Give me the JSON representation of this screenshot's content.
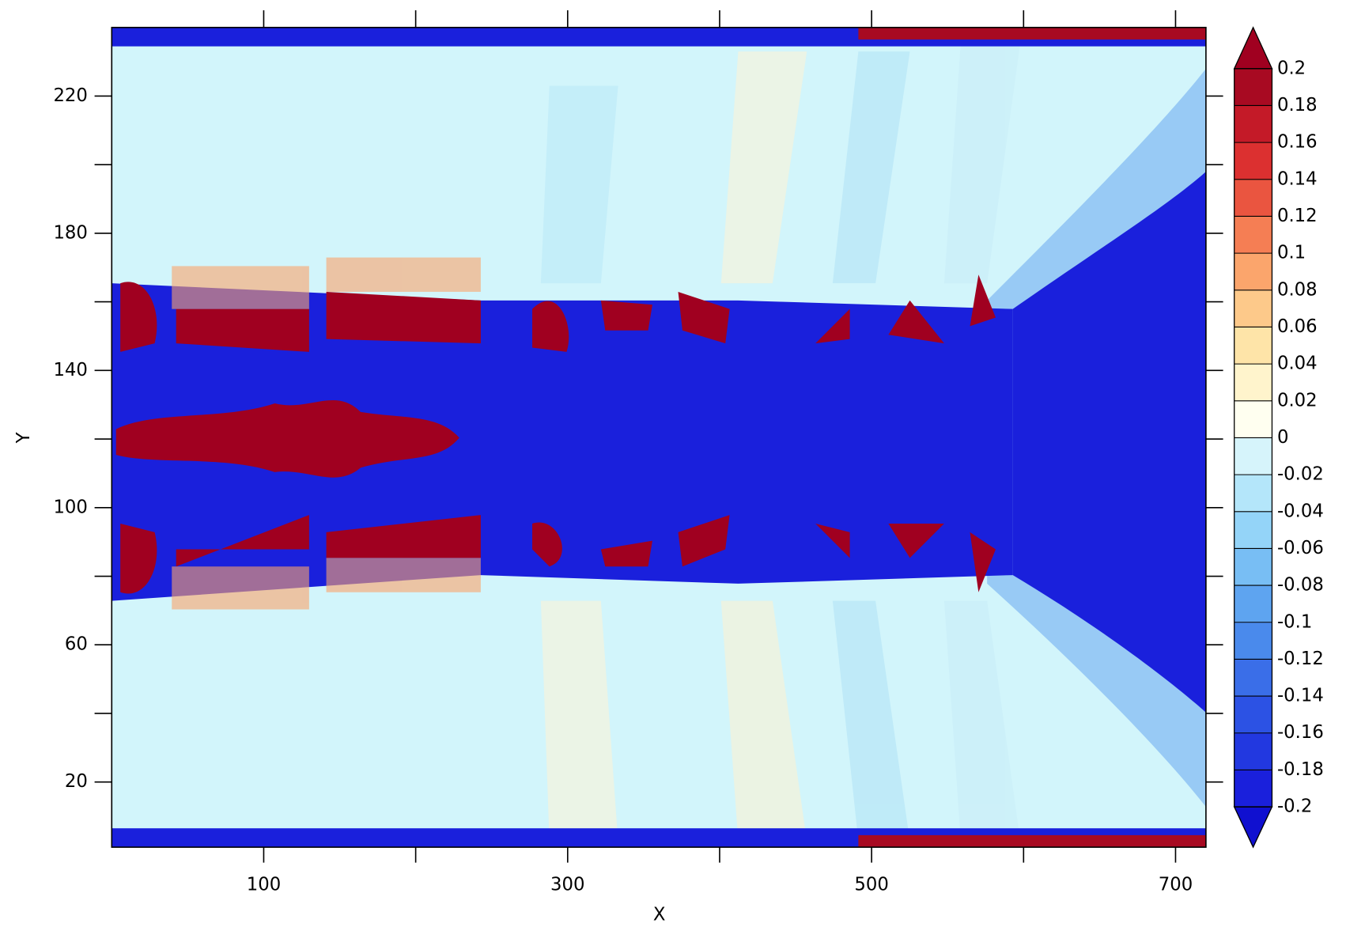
{
  "chart_data": {
    "type": "contour",
    "xlabel": "X",
    "ylabel": "Y",
    "xlim": [
      0,
      720
    ],
    "ylim": [
      1,
      240
    ],
    "xticks": [
      100,
      300,
      500,
      700
    ],
    "xminor_ticks": [
      200,
      400,
      600
    ],
    "yticks": [
      20,
      60,
      100,
      140,
      180,
      220
    ],
    "yminor_ticks": [
      40,
      80,
      120,
      160,
      200
    ],
    "colorbar": {
      "levels": [
        -0.2,
        -0.18,
        -0.16,
        -0.14,
        -0.12,
        -0.1,
        -0.08,
        -0.06,
        -0.04,
        -0.02,
        0,
        0.02,
        0.04,
        0.06,
        0.08,
        0.1,
        0.12,
        0.14,
        0.16,
        0.18,
        0.2
      ],
      "colors": [
        "#1a20dc",
        "#2238e0",
        "#2c52e4",
        "#3a6ee8",
        "#4a8aec",
        "#5ea4f0",
        "#78bef4",
        "#94d4f8",
        "#b4e6fa",
        "#d6f4fb",
        "#fffff0",
        "#fff4cc",
        "#fee4a8",
        "#fdc98a",
        "#fba56c",
        "#f57e54",
        "#ea5540",
        "#dc3030",
        "#c41a28",
        "#a80a22"
      ],
      "under_color": "#1010d0",
      "over_color": "#a00020"
    }
  }
}
